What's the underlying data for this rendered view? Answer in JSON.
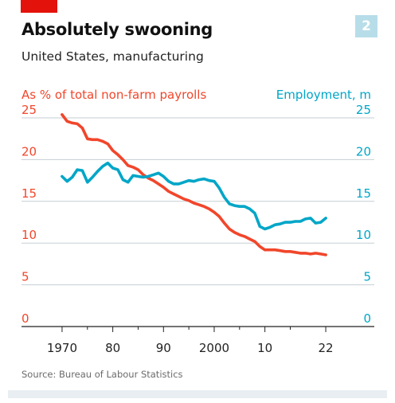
{
  "header": {
    "badge": "2",
    "title": "Absolutely swooning",
    "subtitle": "United States, manufacturing"
  },
  "footer": {
    "source": "Source: Bureau of Labour Statistics"
  },
  "colors": {
    "share": "#f1462b",
    "employment": "#00a6c7",
    "grid": "#c5cdd3",
    "brand": "#e3120b"
  },
  "chart_data": {
    "type": "line",
    "xlabel": "",
    "xticks": [
      "1970",
      "80",
      "90",
      "2000",
      "10",
      "22"
    ],
    "xlim": [
      1962,
      2030
    ],
    "left_axis": {
      "label": "As % of total non-farm payrolls",
      "ticks": [
        "25",
        "20",
        "15",
        "10",
        "5",
        "0"
      ],
      "ylim": [
        0,
        25
      ]
    },
    "right_axis": {
      "label": "Employment, m",
      "ticks": [
        "25",
        "20",
        "15",
        "10",
        "5",
        "0"
      ],
      "ylim": [
        0,
        25
      ]
    },
    "grid": true,
    "series": [
      {
        "name": "As % of total non-farm payrolls",
        "axis": "left",
        "x": [
          1970,
          1971,
          1972,
          1973,
          1974,
          1975,
          1976,
          1977,
          1978,
          1979,
          1980,
          1981,
          1982,
          1983,
          1984,
          1985,
          1986,
          1987,
          1988,
          1989,
          1990,
          1991,
          1992,
          1993,
          1994,
          1995,
          1996,
          1997,
          1998,
          1999,
          2000,
          2001,
          2002,
          2003,
          2004,
          2005,
          2006,
          2007,
          2008,
          2009,
          2010,
          2011,
          2012,
          2013,
          2014,
          2015,
          2016,
          2017,
          2018,
          2019,
          2020,
          2021,
          2022
        ],
        "values": [
          25.2,
          24.4,
          24.2,
          24.1,
          23.6,
          22.3,
          22.2,
          22.2,
          22.0,
          21.7,
          20.9,
          20.4,
          19.8,
          19.1,
          18.9,
          18.6,
          18.0,
          17.6,
          17.3,
          16.9,
          16.5,
          16.0,
          15.7,
          15.4,
          15.1,
          14.9,
          14.6,
          14.4,
          14.2,
          13.9,
          13.5,
          13.0,
          12.2,
          11.5,
          11.1,
          10.8,
          10.6,
          10.3,
          10.0,
          9.4,
          9.0,
          9.0,
          9.0,
          8.9,
          8.8,
          8.8,
          8.7,
          8.6,
          8.6,
          8.5,
          8.6,
          8.5,
          8.4
        ]
      },
      {
        "name": "Employment, m",
        "axis": "right",
        "x": [
          1970,
          1971,
          1972,
          1973,
          1974,
          1975,
          1976,
          1977,
          1978,
          1979,
          1980,
          1981,
          1982,
          1983,
          1984,
          1985,
          1986,
          1987,
          1988,
          1989,
          1990,
          1991,
          1992,
          1993,
          1994,
          1995,
          1996,
          1997,
          1998,
          1999,
          2000,
          2001,
          2002,
          2003,
          2004,
          2005,
          2006,
          2007,
          2008,
          2009,
          2010,
          2011,
          2012,
          2013,
          2014,
          2015,
          2016,
          2017,
          2018,
          2019,
          2020,
          2021,
          2022
        ],
        "values": [
          17.8,
          17.2,
          17.7,
          18.6,
          18.5,
          17.1,
          17.7,
          18.4,
          19.0,
          19.4,
          18.8,
          18.6,
          17.4,
          17.1,
          17.9,
          17.8,
          17.7,
          17.8,
          18.0,
          18.2,
          17.8,
          17.2,
          16.9,
          16.9,
          17.1,
          17.3,
          17.2,
          17.4,
          17.5,
          17.3,
          17.2,
          16.4,
          15.3,
          14.5,
          14.3,
          14.2,
          14.2,
          13.9,
          13.4,
          11.8,
          11.5,
          11.7,
          12.0,
          12.1,
          12.3,
          12.3,
          12.4,
          12.4,
          12.7,
          12.8,
          12.2,
          12.3,
          12.8
        ]
      }
    ]
  }
}
